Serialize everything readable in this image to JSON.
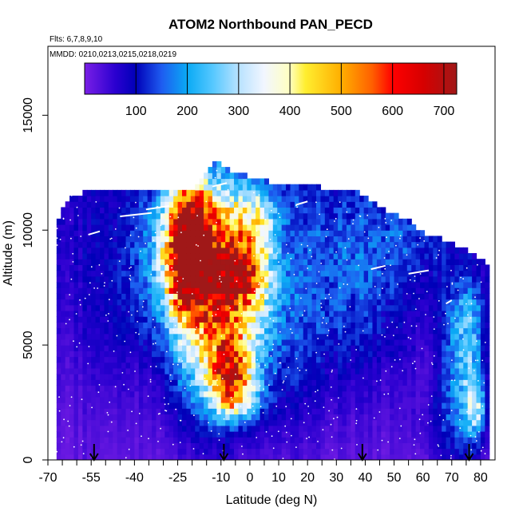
{
  "chart_data": {
    "type": "heatmap",
    "title": "ATOM2 Northbound PAN_PECD",
    "flights_label": "Flts: 6,7,8,9,10",
    "dates_label": "MMDD: 0210,0213,0215,0218,0219",
    "xlabel": "Latitude (deg N)",
    "ylabel": "Altitude (m)",
    "xlim": [
      -70,
      85
    ],
    "ylim": [
      0,
      18000
    ],
    "x_ticks": [
      -70,
      -55,
      -40,
      -25,
      -10,
      0,
      10,
      20,
      30,
      40,
      50,
      60,
      70,
      80
    ],
    "x_minor_ticks": [
      -65,
      -60,
      -50,
      -45,
      -35,
      -30,
      -20,
      -15,
      -5,
      5,
      15,
      25,
      35,
      45,
      55,
      65,
      75
    ],
    "y_ticks": [
      0,
      5000,
      10000,
      15000
    ],
    "colorbar": {
      "range": [
        0,
        725
      ],
      "ticks": [
        100,
        200,
        300,
        400,
        500,
        600,
        700
      ],
      "stops": [
        {
          "v": 0,
          "c": "#7a1fe6"
        },
        {
          "v": 60,
          "c": "#2a00d0"
        },
        {
          "v": 100,
          "c": "#0000b8"
        },
        {
          "v": 150,
          "c": "#1e5cf0"
        },
        {
          "v": 200,
          "c": "#0aaaf5"
        },
        {
          "v": 250,
          "c": "#56c8ff"
        },
        {
          "v": 300,
          "c": "#b8e2ff"
        },
        {
          "v": 350,
          "c": "#f2f6ff"
        },
        {
          "v": 400,
          "c": "#ffffc0"
        },
        {
          "v": 430,
          "c": "#ffee30"
        },
        {
          "v": 500,
          "c": "#ffae00"
        },
        {
          "v": 560,
          "c": "#ff6000"
        },
        {
          "v": 600,
          "c": "#ff0000"
        },
        {
          "v": 660,
          "c": "#d60000"
        },
        {
          "v": 725,
          "c": "#a01818"
        }
      ]
    },
    "arrows_x": [
      -54,
      -9,
      39,
      76
    ],
    "data_x_range": [
      -67,
      82
    ],
    "altitude_envelope": [
      {
        "x": -67,
        "top": 10300
      },
      {
        "x": -64,
        "top": 11100
      },
      {
        "x": -60,
        "top": 11400
      },
      {
        "x": -55,
        "top": 11600
      },
      {
        "x": -50,
        "top": 11600
      },
      {
        "x": -40,
        "top": 11700
      },
      {
        "x": -30,
        "top": 11600
      },
      {
        "x": -25,
        "top": 11600
      },
      {
        "x": -20,
        "top": 11700
      },
      {
        "x": -15,
        "top": 12300
      },
      {
        "x": -12,
        "top": 12900
      },
      {
        "x": -5,
        "top": 12400
      },
      {
        "x": 0,
        "top": 12200
      },
      {
        "x": 10,
        "top": 11900
      },
      {
        "x": 20,
        "top": 11800
      },
      {
        "x": 30,
        "top": 11700
      },
      {
        "x": 37,
        "top": 11600
      },
      {
        "x": 42,
        "top": 11100
      },
      {
        "x": 50,
        "top": 10600
      },
      {
        "x": 55,
        "top": 10300
      },
      {
        "x": 60,
        "top": 9800
      },
      {
        "x": 65,
        "top": 9600
      },
      {
        "x": 70,
        "top": 9300
      },
      {
        "x": 75,
        "top": 9000
      },
      {
        "x": 80,
        "top": 8700
      },
      {
        "x": 82,
        "top": 8400
      }
    ],
    "concentration_features": [
      {
        "lat": -22,
        "alt": 8500,
        "sx": 4,
        "sy": 1300,
        "v": 420
      },
      {
        "lat": -21,
        "alt": 9500,
        "sx": 6,
        "sy": 2000,
        "v": 330
      },
      {
        "lat": -20,
        "alt": 10800,
        "sx": 5,
        "sy": 900,
        "v": 280
      },
      {
        "lat": -18,
        "alt": 7800,
        "sx": 9,
        "sy": 3000,
        "v": 260
      },
      {
        "lat": -14,
        "alt": 6000,
        "sx": 8,
        "sy": 3000,
        "v": 220
      },
      {
        "lat": -5,
        "alt": 7900,
        "sx": 8,
        "sy": 900,
        "v": 300
      },
      {
        "lat": -8,
        "alt": 9500,
        "sx": 7,
        "sy": 1800,
        "v": 230
      },
      {
        "lat": -7,
        "alt": 5400,
        "sx": 8,
        "sy": 2000,
        "v": 220
      },
      {
        "lat": -6,
        "alt": 3300,
        "sx": 5,
        "sy": 900,
        "v": 320
      },
      {
        "lat": -7,
        "alt": 4400,
        "sx": 4,
        "sy": 800,
        "v": 260
      },
      {
        "lat": -5,
        "alt": 2600,
        "sx": 6,
        "sy": 600,
        "v": 200
      },
      {
        "lat": -1,
        "alt": 9400,
        "sx": 6,
        "sy": 1600,
        "v": 200
      },
      {
        "lat": 0,
        "alt": 7000,
        "sx": 7,
        "sy": 2500,
        "v": 170
      },
      {
        "lat": 3,
        "alt": 10600,
        "sx": 5,
        "sy": 1000,
        "v": 190
      },
      {
        "lat": -30,
        "alt": 9000,
        "sx": 8,
        "sy": 2200,
        "v": 140
      },
      {
        "lat": 20,
        "alt": 8000,
        "sx": 12,
        "sy": 3500,
        "v": 120
      },
      {
        "lat": 40,
        "alt": 7500,
        "sx": 12,
        "sy": 3000,
        "v": 120
      },
      {
        "lat": 55,
        "alt": 9500,
        "sx": 10,
        "sy": 1200,
        "v": 110
      },
      {
        "lat": 72,
        "alt": 4000,
        "sx": 4,
        "sy": 2500,
        "v": 190
      },
      {
        "lat": 77,
        "alt": 3200,
        "sx": 3,
        "sy": 2000,
        "v": 220
      },
      {
        "lat": 79,
        "alt": 2200,
        "sx": 2,
        "sy": 700,
        "v": 230
      },
      {
        "lat": 76,
        "alt": 6500,
        "sx": 4,
        "sy": 1000,
        "v": 150
      },
      {
        "lat": 67,
        "alt": 1500,
        "sx": 6,
        "sy": 1200,
        "v": 110
      },
      {
        "lat": -45,
        "alt": 6500,
        "sx": 10,
        "sy": 2500,
        "v": 90
      },
      {
        "lat": 10,
        "alt": 4000,
        "sx": 10,
        "sy": 2500,
        "v": 100
      }
    ],
    "background_profile": [
      {
        "alt": 0,
        "v": 20
      },
      {
        "alt": 2000,
        "v": 28
      },
      {
        "alt": 4000,
        "v": 40
      },
      {
        "alt": 6000,
        "v": 55
      },
      {
        "alt": 8000,
        "v": 65
      },
      {
        "alt": 10000,
        "v": 75
      },
      {
        "alt": 12000,
        "v": 80
      }
    ]
  }
}
